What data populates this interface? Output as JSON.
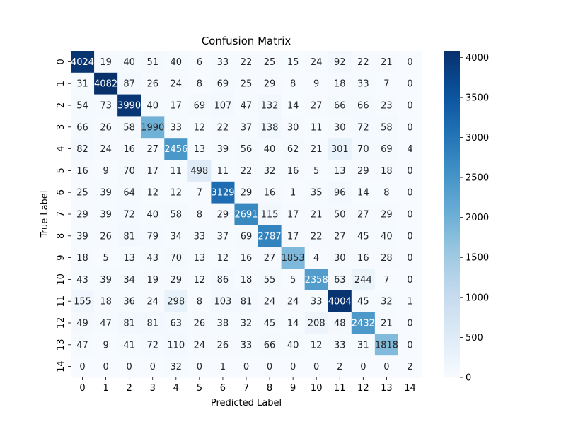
{
  "chart_data": {
    "type": "heatmap",
    "title": "Confusion Matrix",
    "xlabel": "Predicted Label",
    "ylabel": "True Label",
    "x_categories": [
      "0",
      "1",
      "2",
      "3",
      "4",
      "5",
      "6",
      "7",
      "8",
      "9",
      "10",
      "11",
      "12",
      "13",
      "14"
    ],
    "y_categories": [
      "0",
      "1",
      "2",
      "3",
      "4",
      "5",
      "6",
      "7",
      "8",
      "9",
      "10",
      "11",
      "12",
      "13",
      "14"
    ],
    "values": [
      [
        4024,
        19,
        40,
        51,
        40,
        6,
        33,
        22,
        25,
        15,
        24,
        92,
        22,
        21,
        0
      ],
      [
        31,
        4082,
        87,
        26,
        24,
        8,
        69,
        25,
        29,
        8,
        9,
        18,
        33,
        7,
        0
      ],
      [
        54,
        73,
        3990,
        40,
        17,
        69,
        107,
        47,
        132,
        14,
        27,
        66,
        66,
        23,
        0
      ],
      [
        66,
        26,
        58,
        1990,
        33,
        12,
        22,
        37,
        138,
        30,
        11,
        30,
        72,
        58,
        0
      ],
      [
        82,
        24,
        16,
        27,
        2456,
        13,
        39,
        56,
        40,
        62,
        21,
        301,
        70,
        69,
        4
      ],
      [
        16,
        9,
        70,
        17,
        11,
        498,
        11,
        22,
        32,
        16,
        5,
        13,
        29,
        18,
        0
      ],
      [
        25,
        39,
        64,
        12,
        12,
        7,
        3129,
        29,
        16,
        1,
        35,
        96,
        14,
        8,
        0
      ],
      [
        29,
        39,
        72,
        40,
        58,
        8,
        29,
        2691,
        115,
        17,
        21,
        50,
        27,
        29,
        0
      ],
      [
        39,
        26,
        81,
        79,
        34,
        33,
        37,
        69,
        2787,
        17,
        22,
        27,
        45,
        40,
        0
      ],
      [
        18,
        5,
        13,
        43,
        70,
        13,
        12,
        16,
        27,
        1853,
        4,
        30,
        16,
        28,
        0
      ],
      [
        43,
        39,
        34,
        19,
        29,
        12,
        86,
        18,
        55,
        5,
        2358,
        63,
        244,
        7,
        0
      ],
      [
        155,
        18,
        36,
        24,
        298,
        8,
        103,
        81,
        24,
        24,
        33,
        4004,
        45,
        32,
        1
      ],
      [
        49,
        47,
        81,
        81,
        63,
        26,
        38,
        32,
        45,
        14,
        208,
        48,
        2432,
        21,
        0
      ],
      [
        47,
        9,
        41,
        72,
        110,
        24,
        26,
        33,
        66,
        40,
        12,
        33,
        31,
        1818,
        0
      ],
      [
        0,
        0,
        0,
        0,
        32,
        0,
        1,
        0,
        0,
        0,
        0,
        2,
        0,
        0,
        2
      ]
    ],
    "color_range": [
      0,
      4082
    ],
    "colormap": "Blues",
    "colorbar_ticks": [
      0,
      500,
      1000,
      1500,
      2000,
      2500,
      3000,
      3500,
      4000
    ],
    "annotated": true,
    "grid": false,
    "legend": "colorbar-right"
  }
}
